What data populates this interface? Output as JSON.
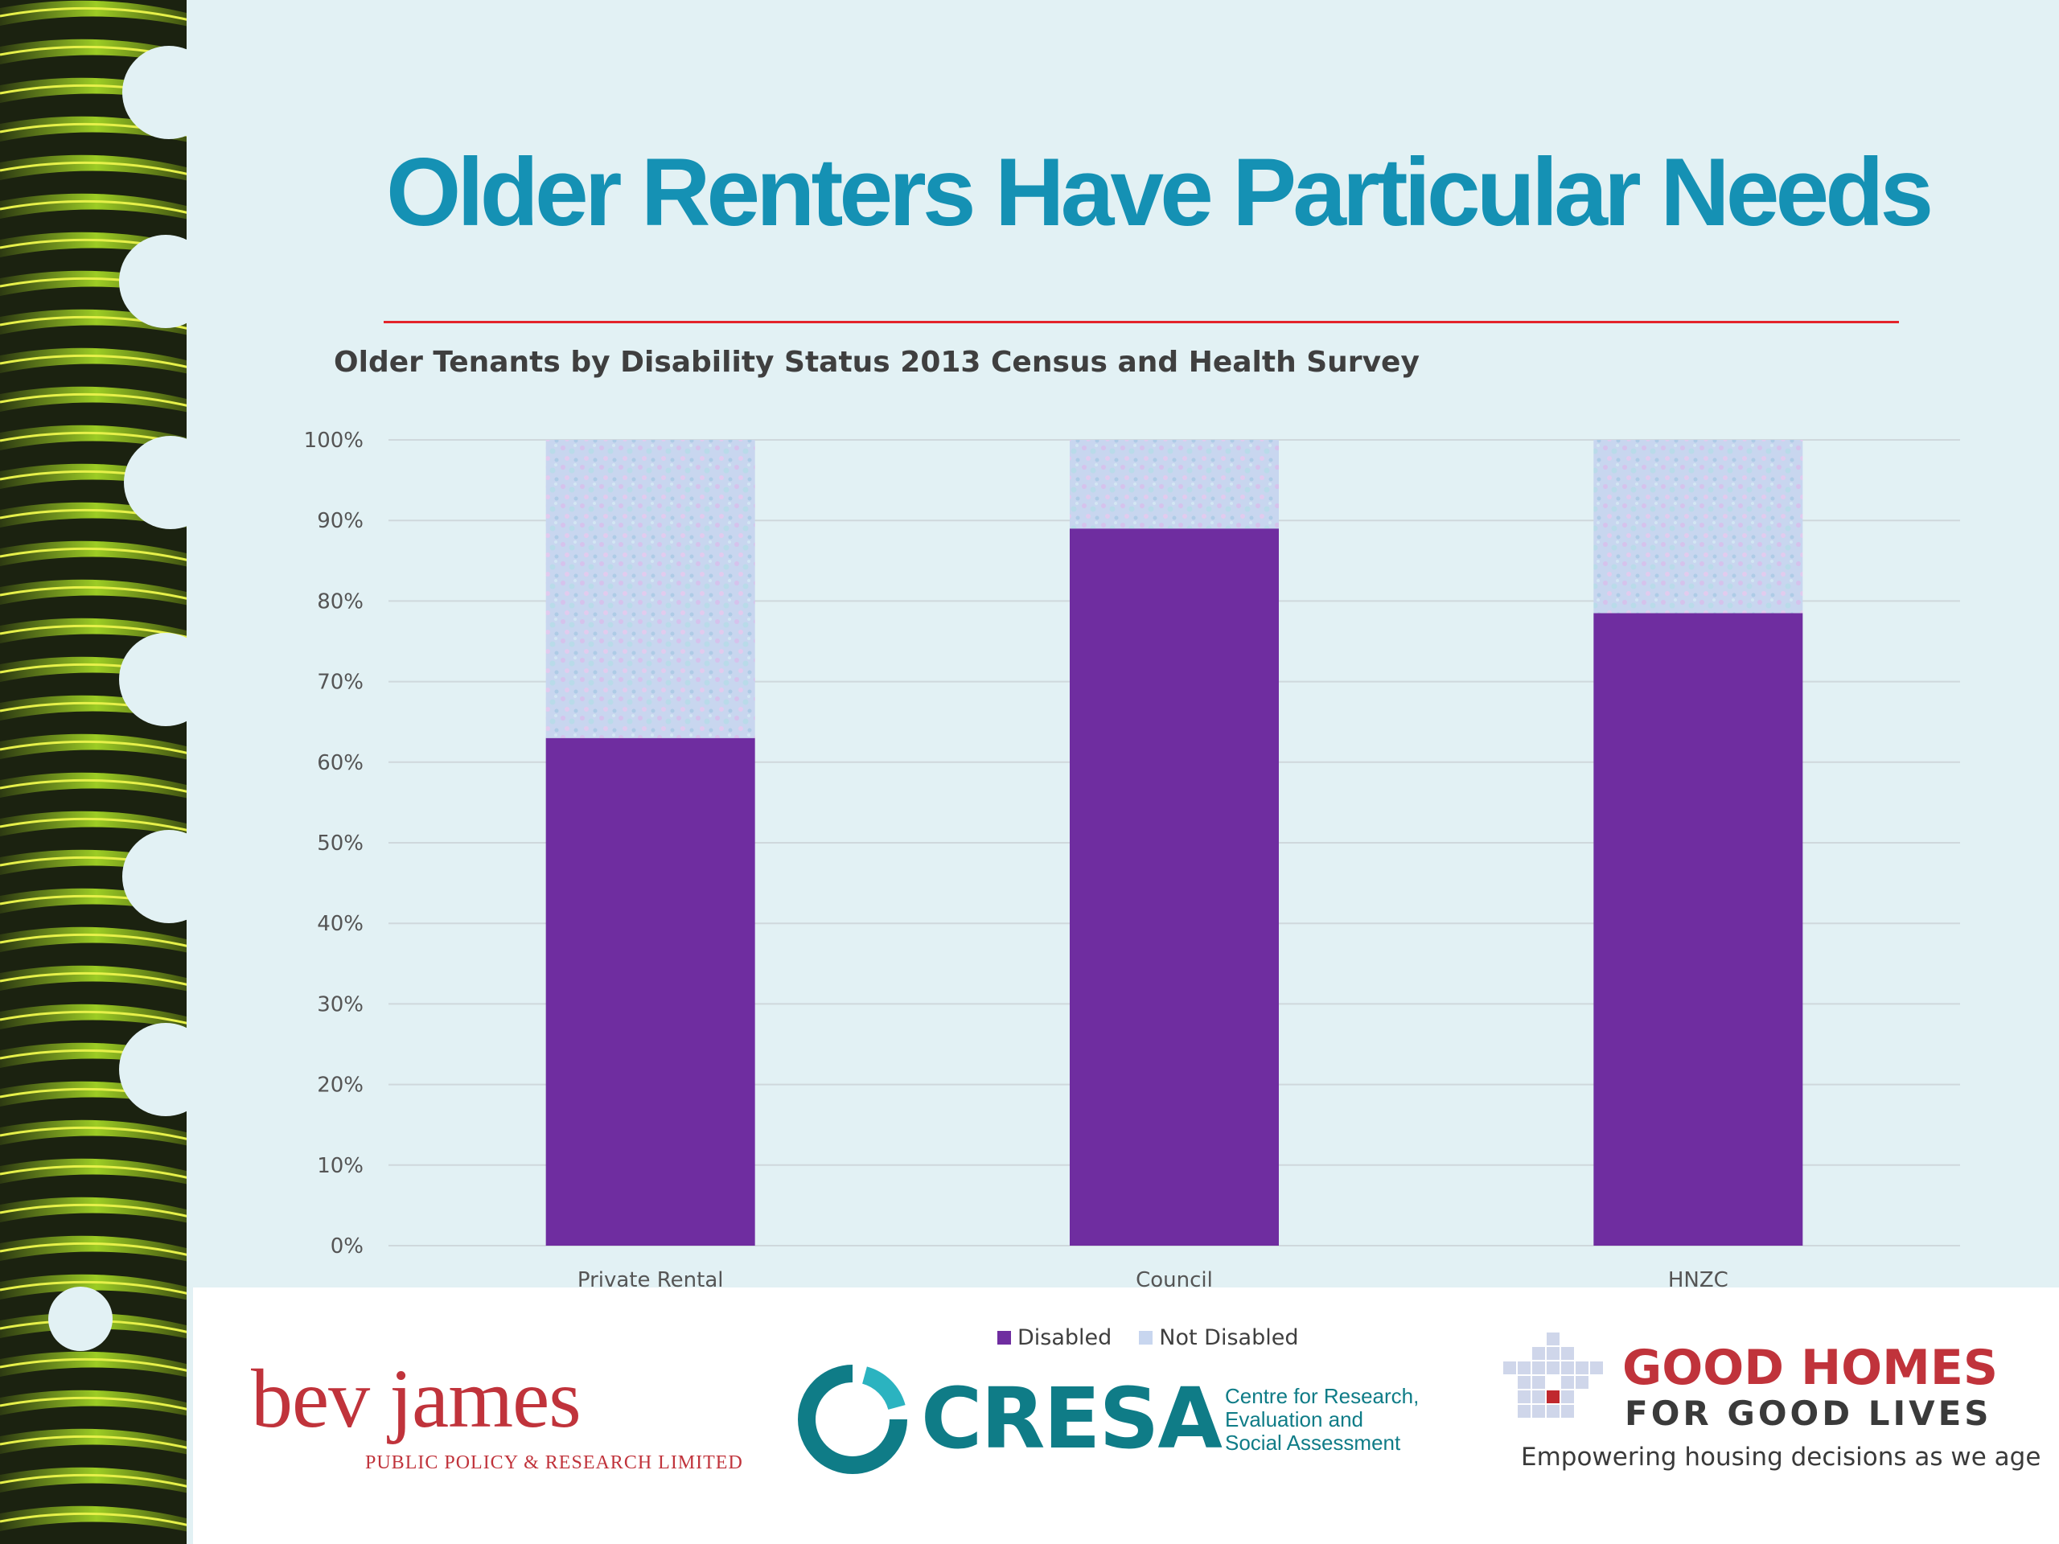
{
  "slide": {
    "title": "Older Renters Have Particular Needs"
  },
  "colors": {
    "title": "#1591b4",
    "rule": "#e3242b",
    "disabled": "#6f2da0",
    "not_disabled": "#c8d6ef",
    "background": "#e2f1f4"
  },
  "chart_data": {
    "type": "bar",
    "stacked": true,
    "title": "Older Tenants by Disability Status 2013 Census and Health Survey",
    "categories": [
      "Private Rental",
      "Council",
      "HNZC"
    ],
    "series": [
      {
        "name": "Disabled",
        "values": [
          63,
          89,
          78.5
        ]
      },
      {
        "name": "Not Disabled",
        "values": [
          37,
          11,
          21.5
        ]
      }
    ],
    "ylim": [
      0,
      100
    ],
    "yticks": [
      "0%",
      "10%",
      "20%",
      "30%",
      "40%",
      "50%",
      "60%",
      "70%",
      "80%",
      "90%",
      "100%"
    ],
    "grid": true,
    "legend": "bottom"
  },
  "logos": {
    "bev": {
      "name": "bev james",
      "subtitle": "PUBLIC POLICY & RESEARCH LIMITED"
    },
    "cresa": {
      "name": "CRESA",
      "tagline": [
        "Centre for Research,",
        "Evaluation and",
        "Social Assessment"
      ]
    },
    "good_homes": {
      "line1": "GOOD HOMES",
      "line2": "FOR GOOD LIVES",
      "tagline": "Empowering housing decisions as we age"
    }
  }
}
